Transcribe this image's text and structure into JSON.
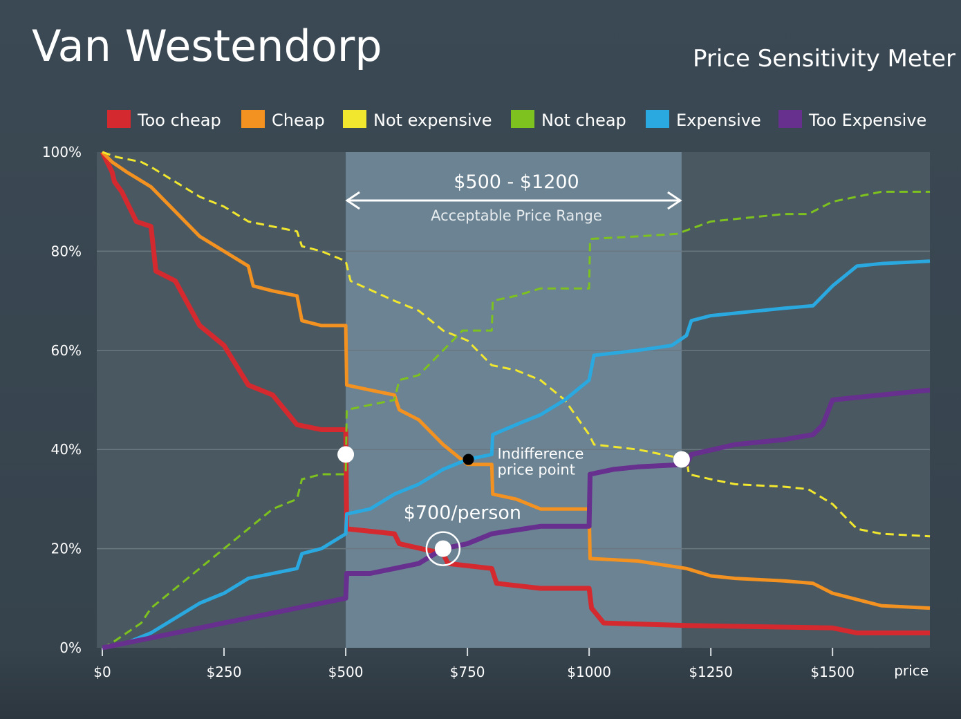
{
  "chart_data": {
    "type": "line",
    "title": "Van Westendorp",
    "subtitle": "Price Sensitivity Meter",
    "xlabel": "price",
    "ylabel": "",
    "xlim": [
      0,
      1700
    ],
    "ylim": [
      0,
      100
    ],
    "x_ticks": [
      {
        "value": 0,
        "label": "$0"
      },
      {
        "value": 250,
        "label": "$250"
      },
      {
        "value": 500,
        "label": "$500"
      },
      {
        "value": 750,
        "label": "$750"
      },
      {
        "value": 1000,
        "label": "$1000"
      },
      {
        "value": 1250,
        "label": "$1250"
      },
      {
        "value": 1500,
        "label": "$1500"
      }
    ],
    "y_ticks": [
      {
        "value": 0,
        "label": "0%"
      },
      {
        "value": 20,
        "label": "20%"
      },
      {
        "value": 40,
        "label": "40%"
      },
      {
        "value": 60,
        "label": "60%"
      },
      {
        "value": 80,
        "label": "80%"
      },
      {
        "value": 100,
        "label": "100%"
      }
    ],
    "grid": true,
    "legend_position": "top",
    "series": [
      {
        "name": "Too cheap",
        "color": "#d42a2f",
        "style": "solid",
        "points": [
          [
            0,
            100
          ],
          [
            10,
            98
          ],
          [
            20,
            96
          ],
          [
            25,
            94
          ],
          [
            40,
            92
          ],
          [
            50,
            90
          ],
          [
            60,
            88
          ],
          [
            70,
            86
          ],
          [
            100,
            85
          ],
          [
            110,
            76
          ],
          [
            150,
            74
          ],
          [
            200,
            65
          ],
          [
            250,
            61
          ],
          [
            300,
            53
          ],
          [
            350,
            51
          ],
          [
            400,
            45
          ],
          [
            450,
            44
          ],
          [
            500,
            44
          ],
          [
            502,
            24
          ],
          [
            600,
            23
          ],
          [
            610,
            21
          ],
          [
            700,
            19
          ],
          [
            710,
            17
          ],
          [
            800,
            16
          ],
          [
            810,
            13
          ],
          [
            900,
            12
          ],
          [
            1000,
            12
          ],
          [
            1005,
            8
          ],
          [
            1030,
            5
          ],
          [
            1200,
            4.5
          ],
          [
            1500,
            4
          ],
          [
            1550,
            3
          ],
          [
            1700,
            3
          ]
        ]
      },
      {
        "name": "Cheap",
        "color": "#f39220",
        "style": "solid",
        "points": [
          [
            0,
            100
          ],
          [
            20,
            98
          ],
          [
            50,
            96
          ],
          [
            100,
            93
          ],
          [
            150,
            88
          ],
          [
            200,
            83
          ],
          [
            250,
            80
          ],
          [
            300,
            77
          ],
          [
            310,
            73
          ],
          [
            350,
            72
          ],
          [
            400,
            71
          ],
          [
            410,
            66
          ],
          [
            450,
            65
          ],
          [
            500,
            65
          ],
          [
            502,
            53
          ],
          [
            550,
            52
          ],
          [
            600,
            51
          ],
          [
            610,
            48
          ],
          [
            650,
            46
          ],
          [
            700,
            41
          ],
          [
            750,
            37
          ],
          [
            800,
            37
          ],
          [
            802,
            31
          ],
          [
            850,
            30
          ],
          [
            900,
            28
          ],
          [
            1000,
            28
          ],
          [
            1002,
            18
          ],
          [
            1100,
            17.5
          ],
          [
            1200,
            16
          ],
          [
            1250,
            14.5
          ],
          [
            1300,
            14
          ],
          [
            1400,
            13.5
          ],
          [
            1460,
            13
          ],
          [
            1500,
            11
          ],
          [
            1600,
            8.5
          ],
          [
            1700,
            8
          ]
        ]
      },
      {
        "name": "Not expensive",
        "color": "#f1e72f",
        "style": "dashed",
        "points": [
          [
            0,
            100
          ],
          [
            30,
            99
          ],
          [
            80,
            98
          ],
          [
            100,
            97
          ],
          [
            150,
            94
          ],
          [
            200,
            91
          ],
          [
            250,
            89
          ],
          [
            300,
            86
          ],
          [
            350,
            85
          ],
          [
            400,
            84
          ],
          [
            410,
            81
          ],
          [
            450,
            80
          ],
          [
            500,
            78
          ],
          [
            510,
            74
          ],
          [
            600,
            70
          ],
          [
            650,
            68
          ],
          [
            700,
            64
          ],
          [
            750,
            62
          ],
          [
            800,
            57
          ],
          [
            850,
            56
          ],
          [
            900,
            54
          ],
          [
            950,
            50
          ],
          [
            1000,
            43
          ],
          [
            1010,
            41
          ],
          [
            1100,
            40
          ],
          [
            1200,
            38
          ],
          [
            1205,
            35
          ],
          [
            1250,
            34
          ],
          [
            1300,
            33
          ],
          [
            1400,
            32.5
          ],
          [
            1450,
            32
          ],
          [
            1500,
            29
          ],
          [
            1550,
            24
          ],
          [
            1600,
            23
          ],
          [
            1700,
            22.5
          ]
        ]
      },
      {
        "name": "Not cheap",
        "color": "#7dc21e",
        "style": "dashed",
        "points": [
          [
            0,
            0
          ],
          [
            20,
            1
          ],
          [
            50,
            3
          ],
          [
            80,
            5
          ],
          [
            100,
            8
          ],
          [
            150,
            12
          ],
          [
            200,
            16
          ],
          [
            250,
            20
          ],
          [
            300,
            24
          ],
          [
            350,
            28
          ],
          [
            400,
            30
          ],
          [
            410,
            34
          ],
          [
            450,
            35
          ],
          [
            500,
            35
          ],
          [
            502,
            48
          ],
          [
            550,
            49
          ],
          [
            600,
            50
          ],
          [
            610,
            54
          ],
          [
            650,
            55
          ],
          [
            700,
            60
          ],
          [
            740,
            64
          ],
          [
            800,
            64
          ],
          [
            802,
            70
          ],
          [
            850,
            71
          ],
          [
            900,
            72.5
          ],
          [
            1000,
            72.5
          ],
          [
            1002,
            82.5
          ],
          [
            1100,
            83
          ],
          [
            1180,
            83.5
          ],
          [
            1250,
            86
          ],
          [
            1350,
            87
          ],
          [
            1400,
            87.5
          ],
          [
            1450,
            87.5
          ],
          [
            1500,
            90
          ],
          [
            1600,
            92
          ],
          [
            1700,
            92
          ]
        ]
      },
      {
        "name": "Expensive",
        "color": "#2aa9e1",
        "style": "solid",
        "points": [
          [
            0,
            0
          ],
          [
            50,
            1
          ],
          [
            100,
            3
          ],
          [
            150,
            6
          ],
          [
            200,
            9
          ],
          [
            250,
            11
          ],
          [
            300,
            14
          ],
          [
            350,
            15
          ],
          [
            400,
            16
          ],
          [
            410,
            19
          ],
          [
            450,
            20
          ],
          [
            500,
            23
          ],
          [
            502,
            27
          ],
          [
            550,
            28
          ],
          [
            600,
            31
          ],
          [
            650,
            33
          ],
          [
            700,
            36
          ],
          [
            750,
            38
          ],
          [
            800,
            39
          ],
          [
            802,
            43
          ],
          [
            850,
            45
          ],
          [
            900,
            47
          ],
          [
            950,
            50
          ],
          [
            1000,
            54
          ],
          [
            1010,
            59
          ],
          [
            1100,
            60
          ],
          [
            1170,
            61
          ],
          [
            1200,
            63
          ],
          [
            1210,
            66
          ],
          [
            1250,
            67
          ],
          [
            1300,
            67.5
          ],
          [
            1400,
            68.5
          ],
          [
            1460,
            69
          ],
          [
            1500,
            73
          ],
          [
            1550,
            77
          ],
          [
            1600,
            77.5
          ],
          [
            1700,
            78
          ]
        ]
      },
      {
        "name": "Too Expensive",
        "color": "#672f8e",
        "style": "solid",
        "points": [
          [
            0,
            0
          ],
          [
            50,
            1
          ],
          [
            100,
            2
          ],
          [
            150,
            3
          ],
          [
            200,
            4
          ],
          [
            250,
            5
          ],
          [
            300,
            6
          ],
          [
            350,
            7
          ],
          [
            400,
            8
          ],
          [
            450,
            9
          ],
          [
            500,
            10
          ],
          [
            502,
            15
          ],
          [
            550,
            15
          ],
          [
            600,
            16
          ],
          [
            650,
            17
          ],
          [
            700,
            20
          ],
          [
            750,
            21
          ],
          [
            800,
            23
          ],
          [
            900,
            24.5
          ],
          [
            1000,
            24.5
          ],
          [
            1002,
            35
          ],
          [
            1050,
            36
          ],
          [
            1100,
            36.5
          ],
          [
            1200,
            37
          ],
          [
            1210,
            39
          ],
          [
            1300,
            41
          ],
          [
            1400,
            42
          ],
          [
            1460,
            43
          ],
          [
            1480,
            45
          ],
          [
            1500,
            50
          ],
          [
            1600,
            51
          ],
          [
            1700,
            52
          ]
        ]
      }
    ],
    "highlight_range": {
      "x": [
        500,
        1190
      ],
      "label": "$500 - $1200",
      "sublabel": "Acceptable Price Range"
    },
    "annotations": [
      {
        "text": "Indifference",
        "text2": "price point",
        "x": 752,
        "y": 38,
        "color": "#000000"
      },
      {
        "text": "$700/person",
        "x": 700,
        "y": 20,
        "ring": true
      }
    ],
    "key_points": [
      {
        "x": 500,
        "y": 39
      },
      {
        "x": 1190,
        "y": 38
      }
    ]
  }
}
